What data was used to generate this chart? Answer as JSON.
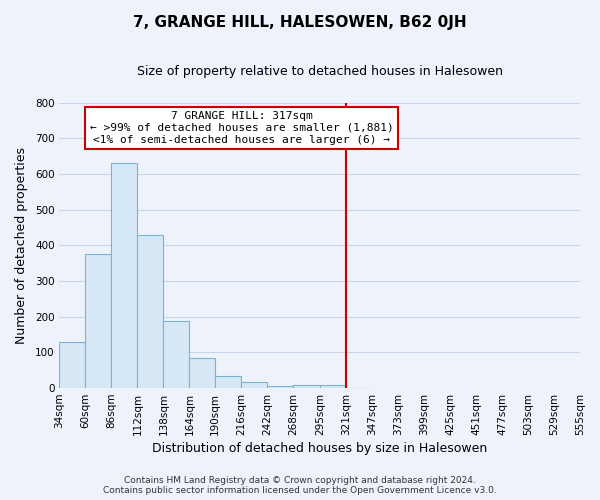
{
  "title": "7, GRANGE HILL, HALESOWEN, B62 0JH",
  "subtitle": "Size of property relative to detached houses in Halesowen",
  "xlabel": "Distribution of detached houses by size in Halesowen",
  "ylabel": "Number of detached properties",
  "bar_edges": [
    34,
    60,
    86,
    112,
    138,
    164,
    190,
    216,
    242,
    268,
    295,
    321,
    347
  ],
  "bar_heights": [
    130,
    375,
    632,
    428,
    188,
    85,
    35,
    17,
    5,
    10,
    10,
    0
  ],
  "bar_color": "#d6e8f5",
  "bar_edgecolor": "#7ab3d4",
  "vline_x": 321,
  "vline_color": "#cc0000",
  "ylim": [
    0,
    800
  ],
  "yticks": [
    0,
    100,
    200,
    300,
    400,
    500,
    600,
    700,
    800
  ],
  "xtick_labels": [
    "34sqm",
    "60sqm",
    "86sqm",
    "112sqm",
    "138sqm",
    "164sqm",
    "190sqm",
    "216sqm",
    "242sqm",
    "268sqm",
    "295sqm",
    "321sqm",
    "347sqm",
    "373sqm",
    "399sqm",
    "425sqm",
    "451sqm",
    "477sqm",
    "503sqm",
    "529sqm",
    "555sqm"
  ],
  "xtick_positions": [
    34,
    60,
    86,
    112,
    138,
    164,
    190,
    216,
    242,
    268,
    295,
    321,
    347,
    373,
    399,
    425,
    451,
    477,
    503,
    529,
    555
  ],
  "xlim": [
    34,
    555
  ],
  "annotation_title": "7 GRANGE HILL: 317sqm",
  "annotation_line1": "← >99% of detached houses are smaller (1,881)",
  "annotation_line2": "<1% of semi-detached houses are larger (6) →",
  "annotation_box_facecolor": "#ffffff",
  "annotation_box_edgecolor": "#cc0000",
  "footer_line1": "Contains HM Land Registry data © Crown copyright and database right 2024.",
  "footer_line2": "Contains public sector information licensed under the Open Government Licence v3.0.",
  "bg_color": "#eef2fb",
  "grid_color": "#c8d4e8",
  "title_fontsize": 11,
  "subtitle_fontsize": 9,
  "tick_fontsize": 7.5,
  "ylabel_fontsize": 9,
  "xlabel_fontsize": 9,
  "footer_fontsize": 6.5,
  "ann_fontsize": 8
}
